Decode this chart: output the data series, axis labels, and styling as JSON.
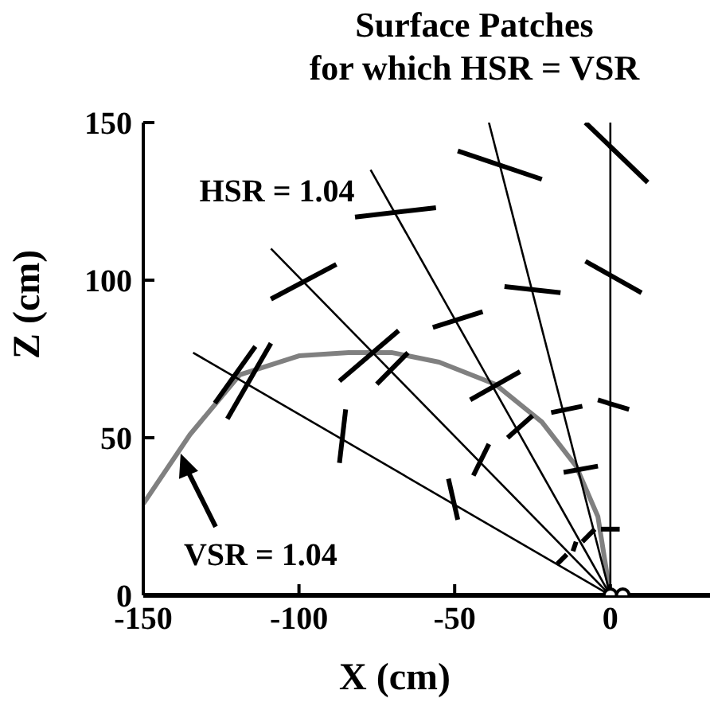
{
  "chart_data": {
    "type": "line",
    "title": "Surface Patches\nfor which HSR = VSR",
    "xlabel": "X (cm)",
    "ylabel": "Z (cm)",
    "xlim": [
      -150,
      32
    ],
    "ylim": [
      0,
      150
    ],
    "xticks": [
      -150,
      -100,
      -50,
      0
    ],
    "yticks": [
      0,
      50,
      100,
      150
    ],
    "marker": "none",
    "line_style": "solid",
    "annotations": [
      {
        "text": "HSR = 1.04",
        "x": -77,
        "y": 135
      },
      {
        "text": "VSR = 1.04",
        "x": -138,
        "y": 45
      }
    ],
    "series": [
      {
        "color": "#808080",
        "x": [
          -150,
          -135,
          -119,
          -100,
          -84,
          -70,
          -55,
          -37,
          -22,
          -11,
          -4,
          0
        ],
        "values": [
          29,
          51,
          70,
          76,
          77,
          77,
          74,
          67,
          55,
          41,
          25,
          0
        ]
      },
      {
        "color": "#000000",
        "x": [
          -134,
          0
        ],
        "values": [
          77,
          0
        ]
      },
      {
        "color": "#000000",
        "x": [
          -109,
          0
        ],
        "values": [
          110,
          0
        ]
      },
      {
        "color": "#000000",
        "x": [
          -77,
          0
        ],
        "values": [
          135,
          0
        ]
      },
      {
        "color": "#000000",
        "x": [
          -39,
          0
        ],
        "values": [
          150,
          0
        ]
      },
      {
        "color": "#000000",
        "x": [
          0,
          0
        ],
        "values": [
          150,
          0
        ]
      },
      {
        "color": "#000000",
        "x": [
          -109,
          -88
        ],
        "values": [
          94,
          105
        ]
      },
      {
        "color": "#000000",
        "x": [
          -82,
          -56
        ],
        "values": [
          120,
          123
        ]
      },
      {
        "color": "#000000",
        "x": [
          -49,
          -22
        ],
        "values": [
          141,
          132
        ]
      },
      {
        "color": "#000000",
        "x": [
          -8,
          12
        ],
        "values": [
          150,
          131
        ]
      },
      {
        "color": "#000000",
        "x": [
          -34,
          -16
        ],
        "values": [
          98,
          96
        ]
      },
      {
        "color": "#000000",
        "x": [
          -8,
          10
        ],
        "values": [
          106,
          96
        ]
      },
      {
        "color": "#000000",
        "x": [
          -57,
          -41
        ],
        "values": [
          85,
          90
        ]
      },
      {
        "color": "#000000",
        "x": [
          -87,
          -68
        ],
        "values": [
          68,
          84
        ]
      },
      {
        "color": "#000000",
        "x": [
          -123,
          -109
        ],
        "values": [
          56,
          80
        ]
      },
      {
        "color": "#000000",
        "x": [
          -127,
          -114
        ],
        "values": [
          61,
          79
        ]
      },
      {
        "color": "#000000",
        "x": [
          -85,
          -87
        ],
        "values": [
          59,
          42
        ]
      },
      {
        "color": "#000000",
        "x": [
          -75,
          -65
        ],
        "values": [
          67,
          77
        ]
      },
      {
        "color": "#000000",
        "x": [
          -45,
          -29
        ],
        "values": [
          62,
          71
        ]
      },
      {
        "color": "#000000",
        "x": [
          -33,
          -25
        ],
        "values": [
          50,
          57
        ]
      },
      {
        "color": "#000000",
        "x": [
          -44,
          -39
        ],
        "values": [
          38,
          48
        ]
      },
      {
        "color": "#000000",
        "x": [
          -52,
          -49
        ],
        "values": [
          37,
          24
        ]
      },
      {
        "color": "#000000",
        "x": [
          -19,
          -9
        ],
        "values": [
          58,
          60
        ]
      },
      {
        "color": "#000000",
        "x": [
          -4,
          6
        ],
        "values": [
          62,
          59
        ]
      },
      {
        "color": "#000000",
        "x": [
          -15,
          -4
        ],
        "values": [
          39,
          41
        ]
      },
      {
        "color": "#000000",
        "x": [
          -3,
          3
        ],
        "values": [
          21,
          21
        ]
      },
      {
        "color": "#000000",
        "x": [
          -9,
          -5
        ],
        "values": [
          17,
          21
        ]
      },
      {
        "color": "#000000",
        "x": [
          -17,
          -14
        ],
        "values": [
          10,
          13
        ]
      },
      {
        "color": "#000000",
        "x": [
          -12,
          -11
        ],
        "values": [
          14,
          17
        ]
      },
      {
        "type": "scatter",
        "marker": "circle",
        "color": "#000000",
        "x": [
          0,
          4
        ],
        "values": [
          0,
          0
        ]
      }
    ]
  }
}
